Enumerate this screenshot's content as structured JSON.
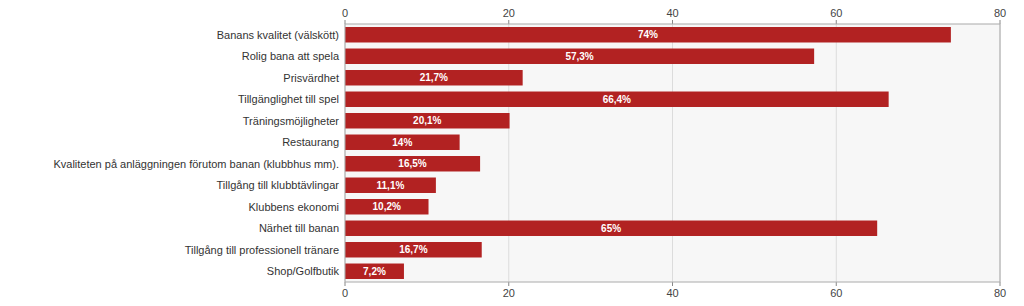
{
  "chart_data": {
    "type": "bar",
    "orientation": "horizontal",
    "categories": [
      "Banans kvalitet (välskött)",
      "Rolig bana att spela",
      "Prisvärdhet",
      "Tillgänglighet till spel",
      "Träningsmöjligheter",
      "Restaurang",
      "Kvaliteten på anläggningen förutom banan (klubbhus mm).",
      "Tillgång till klubbtävlingar",
      "Klubbens ekonomi",
      "Närhet till banan",
      "Tillgång till professionell tränare",
      "Shop/Golfbutik"
    ],
    "values": [
      74.0,
      57.3,
      21.7,
      66.4,
      20.1,
      14.0,
      16.5,
      11.1,
      10.2,
      65.0,
      16.7,
      7.2
    ],
    "value_labels": [
      "74%",
      "57,3%",
      "21,7%",
      "66,4%",
      "20,1%",
      "14%",
      "16,5%",
      "11,1%",
      "10,2%",
      "65%",
      "16,7%",
      "7,2%"
    ],
    "data_labels": true,
    "color": "#b22222",
    "xlim": [
      0,
      80
    ],
    "xticks": [
      0,
      20,
      40,
      60,
      80
    ],
    "grid": true
  }
}
